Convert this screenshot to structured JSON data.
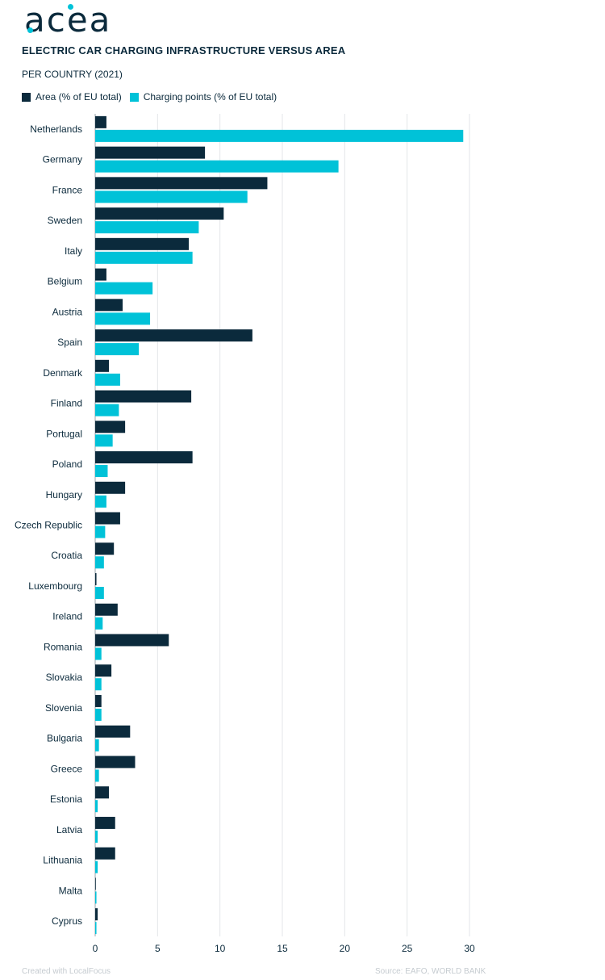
{
  "brand": {
    "logo_text": "acea"
  },
  "header": {
    "title": "ELECTRIC CAR CHARGING INFRASTRUCTURE VERSUS AREA",
    "subtitle": "PER COUNTRY (2021)"
  },
  "footer": {
    "left": "Created with LocalFocus",
    "right": "Source:  EAFO, WORLD BANK"
  },
  "colors": {
    "area": "#0b2a3c",
    "charging": "#00c2d8",
    "grid": "#e3e6e9",
    "text": "#0b2a3c"
  },
  "chart_data": {
    "type": "bar",
    "orientation": "horizontal",
    "title": "ELECTRIC CAR CHARGING INFRASTRUCTURE VERSUS AREA",
    "subtitle": "PER COUNTRY (2021)",
    "legend_position": "top-left",
    "grid": true,
    "xlim": [
      0,
      30
    ],
    "xticks": [
      0,
      5,
      10,
      15,
      20,
      25,
      30
    ],
    "categories": [
      "Netherlands",
      "Germany",
      "France",
      "Sweden",
      "Italy",
      "Belgium",
      "Austria",
      "Spain",
      "Denmark",
      "Finland",
      "Portugal",
      "Poland",
      "Hungary",
      "Czech Republic",
      "Croatia",
      "Luxembourg",
      "Ireland",
      "Romania",
      "Slovakia",
      "Slovenia",
      "Bulgaria",
      "Greece",
      "Estonia",
      "Latvia",
      "Lithuania",
      "Malta",
      "Cyprus"
    ],
    "series": [
      {
        "name": "Area (% of EU total)",
        "color": "#0b2a3c",
        "values": [
          0.9,
          8.8,
          13.8,
          10.3,
          7.5,
          0.9,
          2.2,
          12.6,
          1.1,
          7.7,
          2.4,
          7.8,
          2.4,
          2.0,
          1.5,
          0.1,
          1.8,
          5.9,
          1.3,
          0.5,
          2.8,
          3.2,
          1.1,
          1.6,
          1.6,
          0.01,
          0.2
        ]
      },
      {
        "name": "Charging points (% of EU total)",
        "color": "#00c2d8",
        "values": [
          29.5,
          19.5,
          12.2,
          8.3,
          7.8,
          4.6,
          4.4,
          3.5,
          2.0,
          1.9,
          1.4,
          1.0,
          0.9,
          0.8,
          0.7,
          0.7,
          0.6,
          0.5,
          0.5,
          0.5,
          0.3,
          0.3,
          0.2,
          0.2,
          0.2,
          0.1,
          0.1
        ]
      }
    ]
  }
}
